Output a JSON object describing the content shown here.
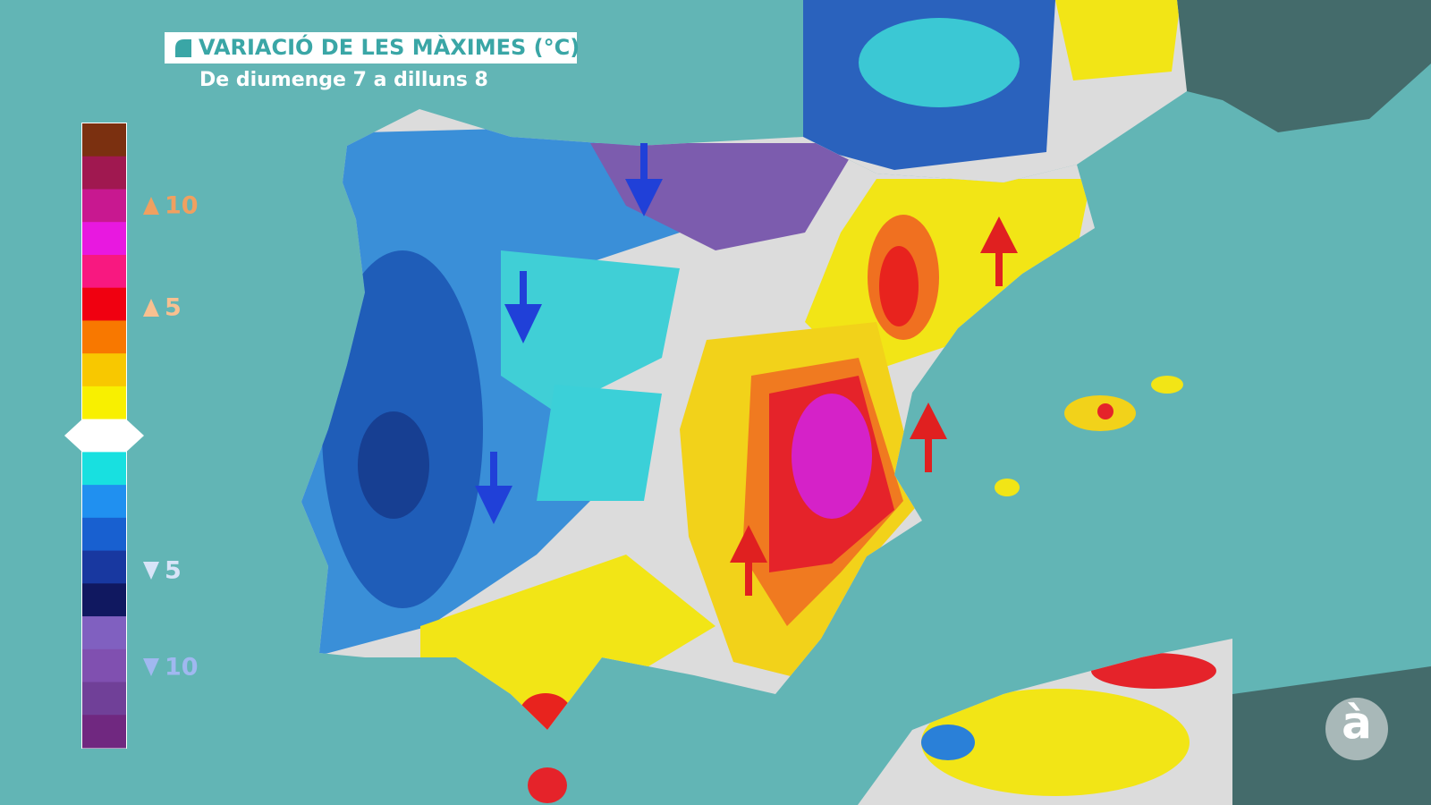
{
  "header": {
    "title": "VARIACIÓ DE LES MÀXIMES (°C)",
    "subtitle": "De diumenge 7 a dilluns 8"
  },
  "legend": {
    "colors": [
      "#7b3010",
      "#a01850",
      "#c81890",
      "#e818e0",
      "#f81880",
      "#f00010",
      "#f87800",
      "#f8c800",
      "#f8f000",
      "#ffffff",
      "#18e0e0",
      "#2090f0",
      "#1860d0",
      "#1838a0",
      "#101860",
      "#8060c0",
      "#8050b0",
      "#704098",
      "#702880"
    ],
    "labels": [
      {
        "text": "10",
        "direction": "up",
        "color": "#f0a060"
      },
      {
        "text": "5",
        "direction": "up",
        "color": "#f8c090"
      },
      {
        "text": "5",
        "direction": "down",
        "color": "#d8e4f8"
      },
      {
        "text": "10",
        "direction": "down",
        "color": "#a0b8f0"
      }
    ]
  },
  "logo": "à"
}
